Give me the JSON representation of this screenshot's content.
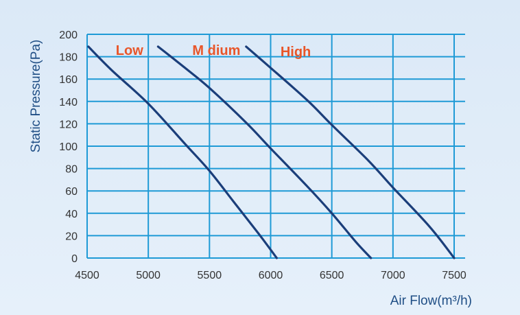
{
  "chart_data": {
    "type": "line",
    "xlabel": "Air Flow(m³/h)",
    "ylabel": "Static Pressure(Pa)",
    "xlim": [
      4500,
      7500
    ],
    "ylim": [
      0,
      200
    ],
    "x_ticks": [
      "4500",
      "5000",
      "5500",
      "6000",
      "6500",
      "7000",
      "7500"
    ],
    "y_ticks": [
      "0",
      "20",
      "40",
      "60",
      "80",
      "100",
      "120",
      "140",
      "160",
      "180",
      "200"
    ],
    "grid": true,
    "colors": {
      "line": "#1b3e7a",
      "grid": "#1e9ad6",
      "label": "#e8562a",
      "axis_text": "#1f4e85"
    },
    "series": [
      {
        "name": "Low",
        "points": [
          [
            4510,
            189
          ],
          [
            4700,
            168
          ],
          [
            5000,
            138
          ],
          [
            5300,
            102
          ],
          [
            5500,
            78
          ],
          [
            5700,
            50
          ],
          [
            5900,
            22
          ],
          [
            6050,
            0
          ]
        ]
      },
      {
        "name": "M dium",
        "points": [
          [
            5080,
            189
          ],
          [
            5300,
            170
          ],
          [
            5500,
            152
          ],
          [
            5800,
            121
          ],
          [
            6000,
            98
          ],
          [
            6300,
            64
          ],
          [
            6500,
            40
          ],
          [
            6700,
            14
          ],
          [
            6820,
            0
          ]
        ]
      },
      {
        "name": "High",
        "points": [
          [
            5800,
            189
          ],
          [
            6000,
            170
          ],
          [
            6300,
            141
          ],
          [
            6500,
            119
          ],
          [
            6800,
            87
          ],
          [
            7000,
            63
          ],
          [
            7300,
            28
          ],
          [
            7500,
            0
          ]
        ]
      }
    ]
  }
}
